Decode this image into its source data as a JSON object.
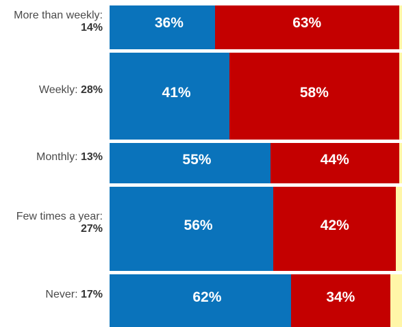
{
  "chart_data": {
    "type": "bar",
    "orientation": "horizontal",
    "stacked": true,
    "proportional_row_heights": true,
    "colors": {
      "blue": "#0a73bb",
      "red": "#c40000",
      "other": "#fff6a8"
    },
    "rows": [
      {
        "label": "More than weekly:",
        "share": "14%",
        "share_value": 14,
        "blue": 36,
        "red": 63,
        "blue_label": "36%",
        "red_label": "63%"
      },
      {
        "label": "Weekly:",
        "share": "28%",
        "share_value": 28,
        "blue": 41,
        "red": 58,
        "blue_label": "41%",
        "red_label": "58%"
      },
      {
        "label": "Monthly:",
        "share": "13%",
        "share_value": 13,
        "blue": 55,
        "red": 44,
        "blue_label": "55%",
        "red_label": "44%"
      },
      {
        "label": "Few times a year:",
        "share": "27%",
        "share_value": 27,
        "blue": 56,
        "red": 42,
        "blue_label": "56%",
        "red_label": "42%"
      },
      {
        "label": "Never:",
        "share": "17%",
        "share_value": 17,
        "blue": 62,
        "red": 34,
        "blue_label": "62%",
        "red_label": "34%"
      }
    ]
  }
}
